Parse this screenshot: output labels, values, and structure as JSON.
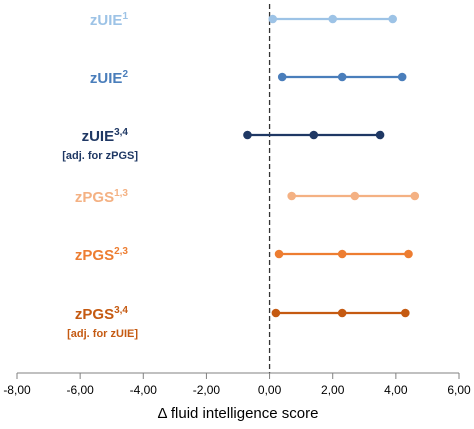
{
  "chart_data": {
    "type": "forest",
    "xlabel": "Δ fluid intelligence score",
    "xlim": [
      -8,
      6
    ],
    "x_ticks": [
      "-8,00",
      "-6,00",
      "-4,00",
      "-2,00",
      "0,00",
      "2,00",
      "4,00",
      "6,00"
    ],
    "x_tick_values": [
      -8,
      -6,
      -4,
      -2,
      0,
      2,
      4,
      6
    ],
    "reference_line": 0,
    "series": [
      {
        "name": "zUIE",
        "superscript": "1",
        "note": "",
        "color": "#9dc3e6",
        "lower": 0.1,
        "estimate": 2.0,
        "upper": 3.9
      },
      {
        "name": "zUIE",
        "superscript": "2",
        "note": "",
        "color": "#4a7ebb",
        "lower": 0.4,
        "estimate": 2.3,
        "upper": 4.2
      },
      {
        "name": "zUIE",
        "superscript": "3,4",
        "note": "[adj. for zPGS]",
        "color": "#1f3864",
        "lower": -0.7,
        "estimate": 1.4,
        "upper": 3.5
      },
      {
        "name": "zPGS",
        "superscript": "1,3",
        "note": "",
        "color": "#f4b183",
        "lower": 0.7,
        "estimate": 2.7,
        "upper": 4.6
      },
      {
        "name": "zPGS",
        "superscript": "2,3",
        "note": "",
        "color": "#ed7d31",
        "lower": 0.3,
        "estimate": 2.3,
        "upper": 4.4
      },
      {
        "name": "zPGS",
        "superscript": "3,4",
        "note": "[adj. for zUIE]",
        "color": "#c55a11",
        "lower": 0.2,
        "estimate": 2.3,
        "upper": 4.3
      }
    ]
  }
}
